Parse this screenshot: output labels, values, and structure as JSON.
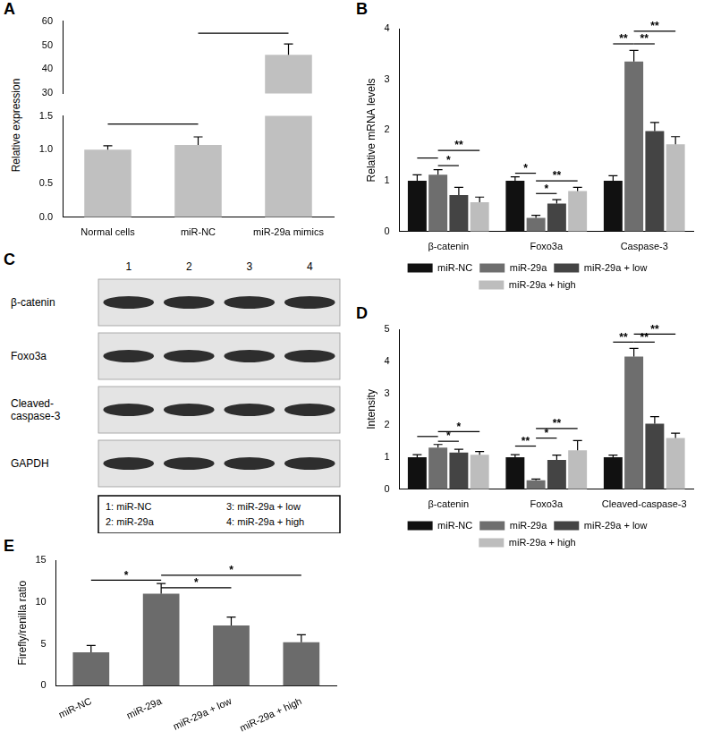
{
  "chart_data": [
    {
      "title": "A",
      "type": "bar",
      "categories": [
        "Normal cells",
        "miR-NC",
        "miR-29a mimics"
      ],
      "values": [
        1.0,
        1.07,
        46
      ],
      "errors": [
        0.06,
        0.12,
        4.5
      ],
      "color": "#c0c0c0",
      "ylabel": "Relative expression",
      "ylim": [
        0,
        60
      ],
      "ybreak": [
        1.5,
        30
      ],
      "yticks": [
        {
          "value": 0,
          "label": "0.0"
        },
        {
          "value": 0.5,
          "label": "0.5"
        },
        {
          "value": 1,
          "label": "1.0"
        },
        {
          "value": 1.5,
          "label": "1.5"
        },
        30,
        40,
        50,
        60
      ],
      "grid": false,
      "annotations": [
        {
          "from": "Normal cells",
          "to": "miR-NC",
          "y": 1.38
        },
        {
          "from": "miR-NC",
          "to": "miR-29a mimics",
          "y": 55
        }
      ]
    },
    {
      "title": "B",
      "type": "bar",
      "categories": [
        "β-catenin",
        "Foxo3a",
        "Caspase-3"
      ],
      "series": [
        {
          "name": "miR-NC",
          "color": "#111111",
          "values": [
            1.0,
            1.0,
            1.0
          ],
          "errors": [
            0.12,
            0.08,
            0.1
          ]
        },
        {
          "name": "miR-29a",
          "color": "#6e6e6e",
          "values": [
            1.12,
            0.27,
            3.35
          ],
          "errors": [
            0.1,
            0.05,
            0.22
          ]
        },
        {
          "name": "miR-29a + low",
          "color": "#444444",
          "values": [
            0.72,
            0.55,
            1.98
          ],
          "errors": [
            0.15,
            0.08,
            0.17
          ]
        },
        {
          "name": "miR-29a + high",
          "color": "#bdbdbd",
          "values": [
            0.58,
            0.8,
            1.72
          ],
          "errors": [
            0.1,
            0.07,
            0.15
          ]
        }
      ],
      "ylabel": "Relative mRNA levels",
      "ylim": [
        0,
        4
      ],
      "yticks": [
        0,
        1,
        2,
        3,
        4
      ],
      "grid": false,
      "legend": "bottom",
      "annotations": [
        {
          "category": "β-catenin",
          "from": "miR-NC",
          "to": "miR-29a",
          "y": 1.45
        },
        {
          "category": "β-catenin",
          "from": "miR-29a",
          "to": "miR-29a + low",
          "y": 1.3,
          "label": "*"
        },
        {
          "category": "β-catenin",
          "from": "miR-29a",
          "to": "miR-29a + high",
          "y": 1.6,
          "label": "**"
        },
        {
          "category": "Foxo3a",
          "from": "miR-NC",
          "to": "miR-29a",
          "y": 1.15,
          "label": "*"
        },
        {
          "category": "Foxo3a",
          "from": "miR-29a",
          "to": "miR-29a + low",
          "y": 0.75,
          "label": "*"
        },
        {
          "category": "Foxo3a",
          "from": "miR-29a",
          "to": "miR-29a + high",
          "y": 1.0,
          "label": "**"
        },
        {
          "category": "Caspase-3",
          "from": "miR-NC",
          "to": "miR-29a",
          "y": 3.7,
          "label": "**"
        },
        {
          "category": "Caspase-3",
          "from": "miR-29a",
          "to": "miR-29a + low",
          "y": 3.7,
          "label": "**"
        },
        {
          "category": "Caspase-3",
          "from": "miR-29a",
          "to": "miR-29a + high",
          "y": 3.95,
          "label": "**"
        }
      ]
    },
    {
      "title": "D",
      "type": "bar",
      "categories": [
        "β-catenin",
        "Foxo3a",
        "Cleaved-caspase-3"
      ],
      "series": [
        {
          "name": "miR-NC",
          "color": "#111111",
          "values": [
            1.0,
            1.0,
            1.0
          ],
          "errors": [
            0.08,
            0.08,
            0.07
          ]
        },
        {
          "name": "miR-29a",
          "color": "#6e6e6e",
          "values": [
            1.3,
            0.28,
            4.15
          ],
          "errors": [
            0.1,
            0.04,
            0.25
          ]
        },
        {
          "name": "miR-29a + low",
          "color": "#444444",
          "values": [
            1.15,
            0.92,
            2.05
          ],
          "errors": [
            0.1,
            0.15,
            0.22
          ]
        },
        {
          "name": "miR-29a + high",
          "color": "#bdbdbd",
          "values": [
            1.08,
            1.22,
            1.6
          ],
          "errors": [
            0.1,
            0.3,
            0.15
          ]
        }
      ],
      "ylabel": "Intensity",
      "ylim": [
        0,
        5
      ],
      "yticks": [
        0,
        1,
        2,
        3,
        4,
        5
      ],
      "grid": false,
      "legend": "bottom",
      "annotations": [
        {
          "category": "β-catenin",
          "from": "miR-NC",
          "to": "miR-29a",
          "y": 1.65
        },
        {
          "category": "β-catenin",
          "from": "miR-29a",
          "to": "miR-29a + low",
          "y": 1.5,
          "label": "*"
        },
        {
          "category": "β-catenin",
          "from": "miR-29a",
          "to": "miR-29a + high",
          "y": 1.8,
          "label": "*"
        },
        {
          "category": "Foxo3a",
          "from": "miR-NC",
          "to": "miR-29a",
          "y": 1.35,
          "label": "**"
        },
        {
          "category": "Foxo3a",
          "from": "miR-29a",
          "to": "miR-29a + low",
          "y": 1.6,
          "label": "*"
        },
        {
          "category": "Foxo3a",
          "from": "miR-29a",
          "to": "miR-29a + high",
          "y": 1.9,
          "label": "**"
        },
        {
          "category": "Cleaved-caspase-3",
          "from": "miR-NC",
          "to": "miR-29a",
          "y": 4.6,
          "label": "**"
        },
        {
          "category": "Cleaved-caspase-3",
          "from": "miR-29a",
          "to": "miR-29a + low",
          "y": 4.6,
          "label": "**"
        },
        {
          "category": "Cleaved-caspase-3",
          "from": "miR-29a",
          "to": "miR-29a + high",
          "y": 4.85,
          "label": "**"
        }
      ]
    },
    {
      "title": "E",
      "type": "bar",
      "categories": [
        "miR-NC",
        "miR-29a",
        "miR-29a + low",
        "miR-29a + high"
      ],
      "values": [
        4.0,
        11.0,
        7.2,
        5.2
      ],
      "errors": [
        0.8,
        1.2,
        1.0,
        0.9
      ],
      "color": "#6b6b6b",
      "ylabel": "Firefly/renilla ratio",
      "ylim": [
        0,
        15
      ],
      "yticks": [
        0,
        5,
        10,
        15
      ],
      "grid": false,
      "annotations": [
        {
          "from": "miR-NC",
          "to": "miR-29a",
          "y": 12.6,
          "label": "*"
        },
        {
          "from": "miR-29a",
          "to": "miR-29a + low",
          "y": 11.7,
          "label": "*"
        },
        {
          "from": "miR-29a",
          "to": "miR-29a + high",
          "y": 13.2,
          "label": "*"
        }
      ]
    }
  ],
  "blot": {
    "title": "C",
    "lanes": [
      "1",
      "2",
      "3",
      "4"
    ],
    "rows": [
      "β-catenin",
      "Foxo3a",
      "Cleaved-\ncaspase-3",
      "GAPDH"
    ],
    "key": [
      "1: miR-NC",
      "2: miR-29a",
      "3: miR-29a + low",
      "4: miR-29a + high"
    ]
  }
}
